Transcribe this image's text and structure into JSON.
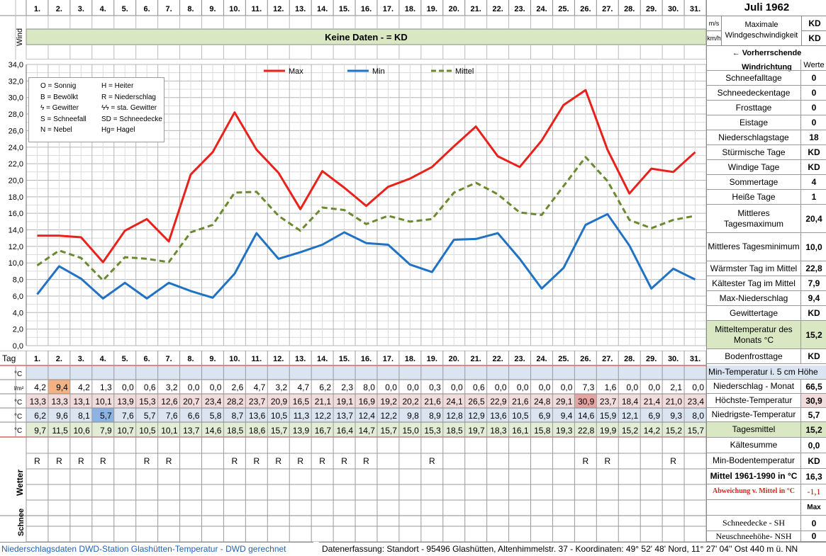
{
  "header": {
    "days": [
      "1.",
      "2.",
      "3.",
      "4.",
      "5.",
      "6.",
      "7.",
      "8.",
      "9.",
      "10.",
      "11.",
      "12.",
      "13.",
      "14.",
      "15.",
      "16.",
      "17.",
      "18.",
      "19.",
      "20.",
      "21.",
      "22.",
      "23.",
      "24.",
      "25.",
      "26.",
      "27.",
      "28.",
      "29.",
      "30.",
      "31."
    ],
    "title": "Juli 1962",
    "unit_ms": "m/s",
    "unit_kmh": "km/h",
    "max_label": "Maximale Windgeschwindigkeit",
    "val_ms": "KD",
    "val_kmh": "KD",
    "wind_label": "Wind",
    "wind_banner": "Keine Daten -  = KD",
    "wind_dir_label": "← Vorherrschende Windrichtung"
  },
  "chart_data": {
    "type": "line",
    "categories": [
      "1.",
      "2.",
      "3.",
      "4.",
      "5.",
      "6.",
      "7.",
      "8.",
      "9.",
      "10.",
      "11.",
      "12.",
      "13.",
      "14.",
      "15.",
      "16.",
      "17.",
      "18.",
      "19.",
      "20.",
      "21.",
      "22.",
      "23.",
      "24.",
      "25.",
      "26.",
      "27.",
      "28.",
      "29.",
      "30.",
      "31."
    ],
    "ylim": [
      0,
      34
    ],
    "yticks": [
      "0,0",
      "2,0",
      "4,0",
      "6,0",
      "8,0",
      "10,0",
      "12,0",
      "14,0",
      "16,0",
      "18,0",
      "20,0",
      "22,0",
      "24,0",
      "26,0",
      "28,0",
      "30,0",
      "32,0",
      "34,0"
    ],
    "grid": true,
    "legend_position": "top",
    "series": [
      {
        "name": "Max",
        "color": "#e8211a",
        "dash": false,
        "values": [
          13.3,
          13.3,
          13.1,
          10.1,
          13.9,
          15.3,
          12.6,
          20.7,
          23.4,
          28.2,
          23.7,
          20.9,
          16.5,
          21.1,
          19.1,
          16.9,
          19.2,
          20.2,
          21.6,
          24.1,
          26.5,
          22.9,
          21.6,
          24.8,
          29.1,
          30.9,
          23.7,
          18.4,
          21.4,
          21.0,
          23.4
        ]
      },
      {
        "name": "Min",
        "color": "#1f72c4",
        "dash": false,
        "values": [
          6.2,
          9.6,
          8.1,
          5.7,
          7.6,
          5.7,
          7.6,
          6.6,
          5.8,
          8.7,
          13.6,
          10.5,
          11.3,
          12.2,
          13.7,
          12.4,
          12.2,
          9.8,
          8.9,
          12.8,
          12.9,
          13.6,
          10.5,
          6.9,
          9.4,
          14.6,
          15.9,
          12.1,
          6.9,
          9.3,
          8.0
        ]
      },
      {
        "name": "Mittel",
        "color": "#6b8a2e",
        "dash": true,
        "values": [
          9.7,
          11.5,
          10.6,
          7.9,
          10.7,
          10.5,
          10.1,
          13.7,
          14.6,
          18.5,
          18.6,
          15.7,
          13.9,
          16.7,
          16.4,
          14.7,
          15.7,
          15.0,
          15.3,
          18.5,
          19.7,
          18.3,
          16.1,
          15.8,
          19.3,
          22.8,
          19.9,
          15.2,
          14.2,
          15.2,
          15.7
        ]
      }
    ]
  },
  "legend_box": [
    [
      "O = Sonnig",
      "H = Heiter"
    ],
    [
      "B = Bewölkt",
      "R = Niederschlag"
    ],
    [
      "ϟ = Gewitter",
      "ϟϟ = sta. Gewitter"
    ],
    [
      "S = Schneefall",
      "SD = Schneedecke"
    ],
    [
      "N = Nebel",
      "Hg= Hagel"
    ]
  ],
  "table": {
    "tag_label": "Tag",
    "unit_c": "°C",
    "unit_lm": "l/m²",
    "precip": [
      "4,2",
      "9,4",
      "4,2",
      "1,3",
      "0,0",
      "0,6",
      "3,2",
      "0,0",
      "0,0",
      "2,6",
      "4,7",
      "3,2",
      "4,7",
      "6,2",
      "2,3",
      "8,0",
      "0,0",
      "0,0",
      "0,3",
      "0,0",
      "0,6",
      "0,0",
      "0,0",
      "0,0",
      "0,0",
      "7,3",
      "1,6",
      "0,0",
      "0,0",
      "2,1",
      "0,0"
    ],
    "max": [
      "13,3",
      "13,3",
      "13,1",
      "10,1",
      "13,9",
      "15,3",
      "12,6",
      "20,7",
      "23,4",
      "28,2",
      "23,7",
      "20,9",
      "16,5",
      "21,1",
      "19,1",
      "16,9",
      "19,2",
      "20,2",
      "21,6",
      "24,1",
      "26,5",
      "22,9",
      "21,6",
      "24,8",
      "29,1",
      "30,9",
      "23,7",
      "18,4",
      "21,4",
      "21,0",
      "23,4"
    ],
    "min": [
      "6,2",
      "9,6",
      "8,1",
      "5,7",
      "7,6",
      "5,7",
      "7,6",
      "6,6",
      "5,8",
      "8,7",
      "13,6",
      "10,5",
      "11,3",
      "12,2",
      "13,7",
      "12,4",
      "12,2",
      "9,8",
      "8,9",
      "12,8",
      "12,9",
      "13,6",
      "10,5",
      "6,9",
      "9,4",
      "14,6",
      "15,9",
      "12,1",
      "6,9",
      "9,3",
      "8,0"
    ],
    "mean": [
      "9,7",
      "11,5",
      "10,6",
      "7,9",
      "10,7",
      "10,5",
      "10,1",
      "13,7",
      "14,6",
      "18,5",
      "18,6",
      "15,7",
      "13,9",
      "16,7",
      "16,4",
      "14,7",
      "15,7",
      "15,0",
      "15,3",
      "18,5",
      "19,7",
      "18,3",
      "16,1",
      "15,8",
      "19,3",
      "22,8",
      "19,9",
      "15,2",
      "14,2",
      "15,2",
      "15,7"
    ],
    "weather": [
      "R",
      "R",
      "R",
      "R",
      "",
      "R",
      "R",
      "",
      "",
      "R",
      "R",
      "R",
      "R",
      "R",
      "R",
      "R",
      "",
      "",
      "R",
      "",
      "",
      "",
      "",
      "",
      "",
      "R",
      "R",
      "",
      "",
      "R",
      ""
    ],
    "wetter_label": "Wetter",
    "schnee_label": "Schnee"
  },
  "stats": {
    "werte_label": "Werte",
    "rows": [
      {
        "label": "Schneefalltage",
        "value": "0"
      },
      {
        "label": "Schneedeckentage",
        "value": "0"
      },
      {
        "label": "Frosttage",
        "value": "0"
      },
      {
        "label": "Eistage",
        "value": "0"
      },
      {
        "label": "Niederschlagstage",
        "value": "18"
      },
      {
        "label": "Stürmische Tage",
        "value": "KD"
      },
      {
        "label": "Windige Tage",
        "value": "KD"
      },
      {
        "label": "Sommertage",
        "value": "4"
      },
      {
        "label": "Heiße Tage",
        "value": "1"
      },
      {
        "label": "Mittleres Tagesmaximum",
        "value": "20,4"
      },
      {
        "label": "Mittleres Tagesminimum",
        "value": "10,0"
      },
      {
        "label": "Wärmster Tag im Mittel",
        "value": "22,8"
      },
      {
        "label": "Kältester Tag im Mittel",
        "value": "7,9"
      },
      {
        "label": "Max-Niederschlag",
        "value": "9,4"
      },
      {
        "label": "Gewittertage",
        "value": "KD"
      },
      {
        "label": "Mitteltemperatur des Monats °C",
        "value": "15,2"
      },
      {
        "label": "Bodenfrosttage",
        "value": "KD"
      }
    ],
    "lower": [
      {
        "label": "Min-Temperatur i. 5 cm Höhe",
        "value": ""
      },
      {
        "label": "Niederschlag - Monat",
        "value": "66,5"
      },
      {
        "label": "Höchste-Temperatur",
        "value": "30,9"
      },
      {
        "label": "Niedrigste-Temperatur",
        "value": "5,7"
      },
      {
        "label": "Tagesmittel",
        "value": "15,2"
      },
      {
        "label": "Kältesumme",
        "value": "0,0"
      },
      {
        "label": "Min-Bodentemperatur",
        "value": "KD"
      },
      {
        "label": "Mittel 1961-1990 in °C",
        "value": "16,3"
      },
      {
        "label": "Abweichung v. Mittel in °C",
        "value": "-1,1"
      },
      {
        "label": "",
        "value": "Max"
      },
      {
        "label": "Schneedecke -  SH",
        "value": "0"
      },
      {
        "label": "Neuschneehöhe- NSH",
        "value": "0"
      }
    ]
  },
  "footer": {
    "left": "Niederschlagsdaten DWD-Station Glashütten-Temperatur -  DWD gerechnet",
    "right": "Datenerfassung: Standort -  95496  Glashütten, Altenhimmelstr. 37 - Koordinaten:  49° 52' 48' Nord,   11° 27' 04'' Ost   440 m ü. NN"
  }
}
